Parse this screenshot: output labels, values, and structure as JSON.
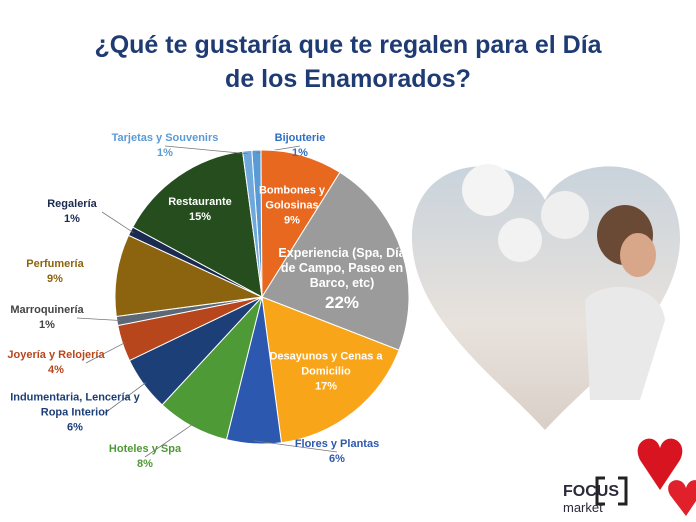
{
  "chart_data": {
    "type": "pie",
    "title": "¿Qué te gustaría que te regalen para el Día de los Enamorados?",
    "categories": [
      "Bijouterie",
      "Bombones y Golosinas",
      "Experiencia (Spa, Día de Campo, Paseo en Barco, etc)",
      "Desayunos y Cenas a Domicilio",
      "Flores y Plantas",
      "Hoteles y Spa",
      "Indumentaria, Lencería y Ropa Interior",
      "Joyería y Relojería",
      "Marroquinería",
      "Perfumería",
      "Regalería",
      "Restaurante",
      "Tarjetas y Souvenirs"
    ],
    "values": [
      1,
      9,
      22,
      17,
      6,
      8,
      6,
      4,
      1,
      9,
      1,
      15,
      1
    ],
    "value_labels": [
      "1%",
      "9%",
      "22%",
      "17%",
      "6%",
      "8%",
      "6%",
      "4%",
      "1%",
      "9%",
      "1%",
      "15%",
      "1%"
    ],
    "colors": [
      "#5b9bd5",
      "#e8681f",
      "#9b9b9b",
      "#f9a51a",
      "#2d58b0",
      "#4e9a37",
      "#1d3f78",
      "#b8461c",
      "#5d6877",
      "#8c6410",
      "#1a2a50",
      "#254d1e",
      "#6fa8dc"
    ]
  },
  "logo": {
    "brand": "FOCUS",
    "sub": "market"
  }
}
